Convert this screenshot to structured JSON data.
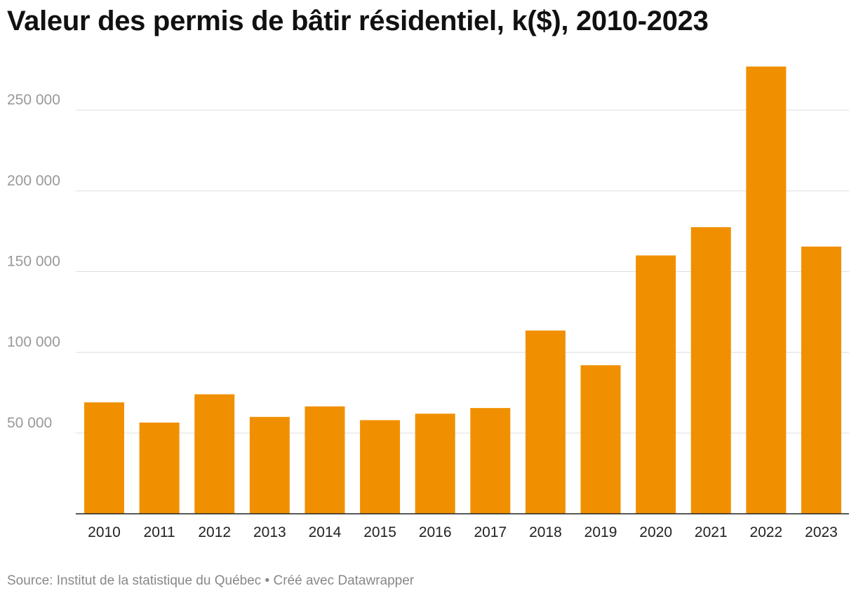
{
  "chart_data": {
    "type": "bar",
    "title": "Valeur des permis de bâtir résidentiel, k($), 2010-2023",
    "categories": [
      "2010",
      "2011",
      "2012",
      "2013",
      "2014",
      "2015",
      "2016",
      "2017",
      "2018",
      "2019",
      "2020",
      "2021",
      "2022",
      "2023"
    ],
    "values": [
      69000,
      56500,
      74000,
      60000,
      66500,
      58000,
      62000,
      65500,
      113500,
      92000,
      160000,
      177500,
      277000,
      165500
    ],
    "yticks": [
      50000,
      100000,
      150000,
      200000,
      250000
    ],
    "ytick_labels": [
      "50 000",
      "100 000",
      "150 000",
      "200 000",
      "250 000"
    ],
    "ylim": [
      0,
      280000
    ],
    "grid": true,
    "bar_color": "#f09000"
  },
  "footer": {
    "source": "Source: Institut de la statistique du Québec • Créé avec Datawrapper"
  }
}
